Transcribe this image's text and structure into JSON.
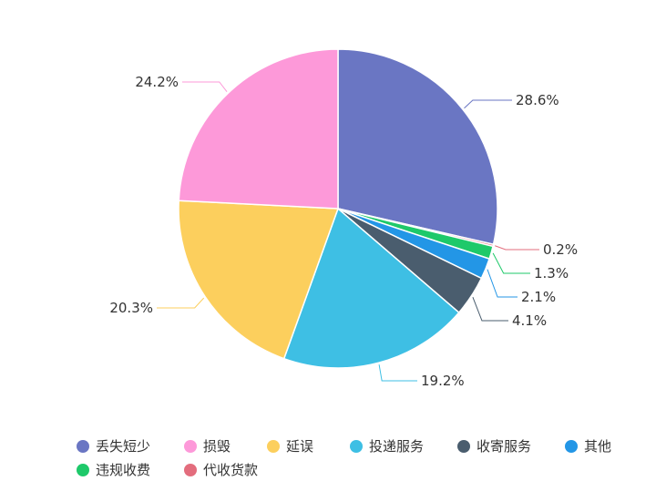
{
  "chart_data": {
    "type": "pie",
    "title": "",
    "legend_position": "bottom",
    "slices": [
      {
        "name": "丢失短少",
        "value": 28.6,
        "label": "28.6%",
        "color": "#6a76c3"
      },
      {
        "name": "代收货款",
        "value": 0.2,
        "label": "0.2%",
        "color": "#e36d7d"
      },
      {
        "name": "违规收费",
        "value": 1.3,
        "label": "1.3%",
        "color": "#1ec96a"
      },
      {
        "name": "其他",
        "value": 2.1,
        "label": "2.1%",
        "color": "#2396e6"
      },
      {
        "name": "收寄服务",
        "value": 4.1,
        "label": "4.1%",
        "color": "#4a5d6e"
      },
      {
        "name": "投递服务",
        "value": 19.2,
        "label": "19.2%",
        "color": "#3ebfe4"
      },
      {
        "name": "延误",
        "value": 20.3,
        "label": "20.3%",
        "color": "#fccf5d"
      },
      {
        "name": "损毁",
        "value": 24.2,
        "label": "24.2%",
        "color": "#fd99d9"
      }
    ],
    "legend_order": [
      "丢失短少",
      "损毁",
      "延误",
      "投递服务",
      "收寄服务",
      "其他",
      "违规收费",
      "代收货款"
    ]
  }
}
